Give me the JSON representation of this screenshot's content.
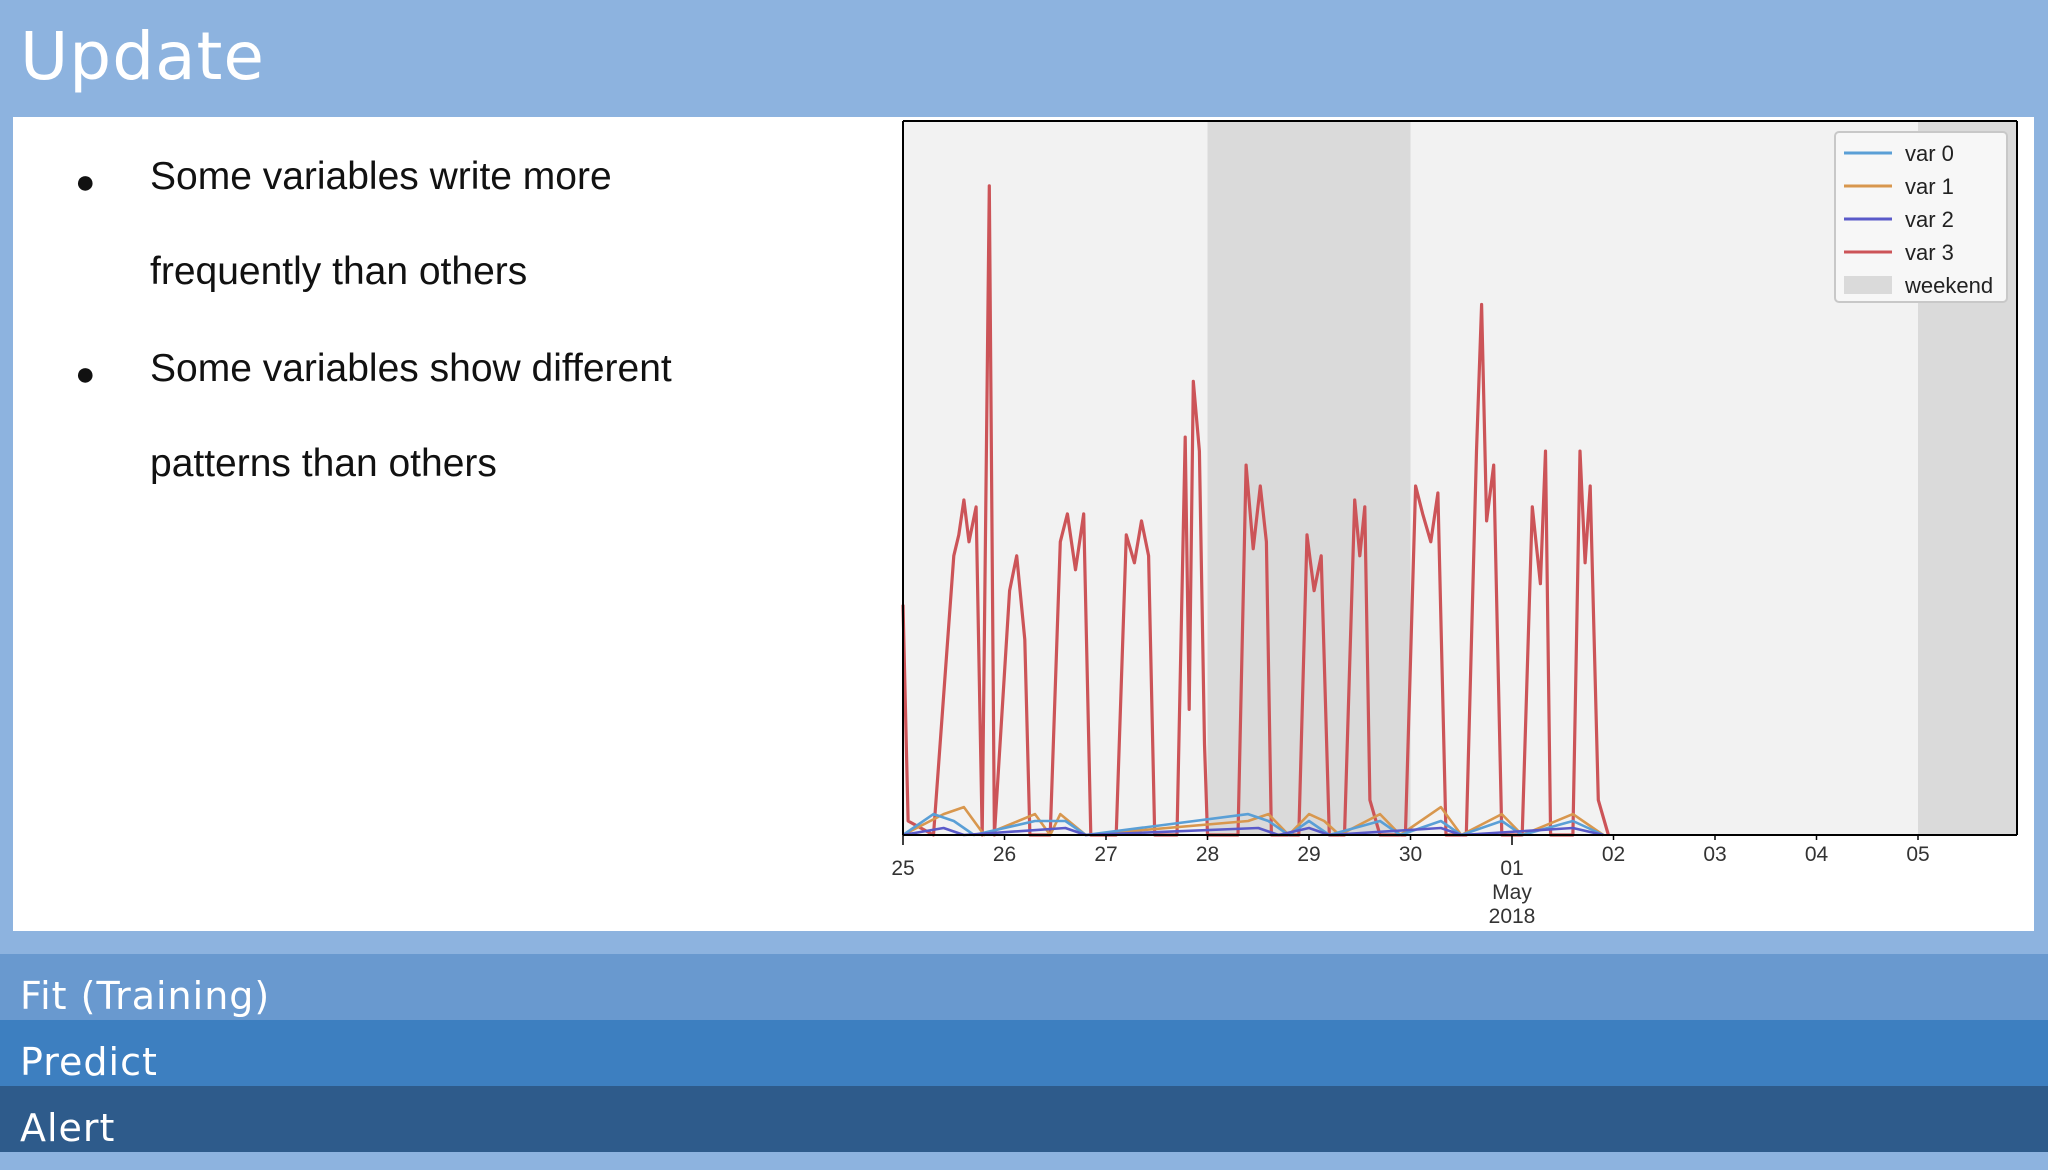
{
  "title": "Update",
  "bullets": [
    {
      "lines": [
        "Some variables write more",
        "frequently than others"
      ]
    },
    {
      "lines": [
        "Some variables show different",
        "patterns than others"
      ]
    }
  ],
  "bullet_glyph": "●",
  "chart_data": {
    "type": "line",
    "x_ticks": [
      "25",
      "26",
      "27",
      "28",
      "29",
      "30",
      "01\nMay\n2018",
      "02",
      "03",
      "04",
      "05"
    ],
    "x_axis_month": "May",
    "x_axis_year": "2018",
    "weekend_spans": [
      [
        "2018-04-28",
        "2018-04-30"
      ],
      [
        "2018-05-05",
        "2018-05-06"
      ]
    ],
    "legend_position": "top-right",
    "legend": [
      "var 0",
      "var 1",
      "var 2",
      "var 3",
      "weekend"
    ],
    "colors": {
      "var 0": "#5a9fd6",
      "var 1": "#d8974e",
      "var 2": "#5a5ac9",
      "var 3": "#cc5458",
      "weekend": "#dadada",
      "plot_bg": "#f2f2f2"
    },
    "series": [
      {
        "name": "var 3",
        "points": [
          [
            0.0,
            0.33
          ],
          [
            0.05,
            0.02
          ],
          [
            0.3,
            0.0
          ],
          [
            0.5,
            0.4
          ],
          [
            0.55,
            0.43
          ],
          [
            0.6,
            0.48
          ],
          [
            0.65,
            0.42
          ],
          [
            0.72,
            0.47
          ],
          [
            0.78,
            0.0
          ],
          [
            0.85,
            0.93
          ],
          [
            0.9,
            0.0
          ],
          [
            1.05,
            0.35
          ],
          [
            1.12,
            0.4
          ],
          [
            1.2,
            0.28
          ],
          [
            1.25,
            0.0
          ],
          [
            1.45,
            0.0
          ],
          [
            1.55,
            0.42
          ],
          [
            1.62,
            0.46
          ],
          [
            1.7,
            0.38
          ],
          [
            1.78,
            0.46
          ],
          [
            1.85,
            0.0
          ],
          [
            2.1,
            0.0
          ],
          [
            2.2,
            0.43
          ],
          [
            2.28,
            0.39
          ],
          [
            2.35,
            0.45
          ],
          [
            2.42,
            0.4
          ],
          [
            2.48,
            0.0
          ],
          [
            2.7,
            0.0
          ],
          [
            2.78,
            0.57
          ],
          [
            2.82,
            0.18
          ],
          [
            2.86,
            0.65
          ],
          [
            2.92,
            0.55
          ],
          [
            2.97,
            0.13
          ],
          [
            3.0,
            0.0
          ],
          [
            3.3,
            0.0
          ],
          [
            3.38,
            0.53
          ],
          [
            3.45,
            0.41
          ],
          [
            3.52,
            0.5
          ],
          [
            3.58,
            0.42
          ],
          [
            3.63,
            0.0
          ],
          [
            3.9,
            0.0
          ],
          [
            3.98,
            0.43
          ],
          [
            4.05,
            0.35
          ],
          [
            4.12,
            0.4
          ],
          [
            4.2,
            0.0
          ],
          [
            4.35,
            0.0
          ],
          [
            4.45,
            0.48
          ],
          [
            4.5,
            0.4
          ],
          [
            4.55,
            0.47
          ],
          [
            4.6,
            0.05
          ],
          [
            4.7,
            0.0
          ],
          [
            4.95,
            0.0
          ],
          [
            5.05,
            0.5
          ],
          [
            5.12,
            0.46
          ],
          [
            5.2,
            0.42
          ],
          [
            5.27,
            0.49
          ],
          [
            5.35,
            0.0
          ],
          [
            5.55,
            0.0
          ],
          [
            5.65,
            0.55
          ],
          [
            5.7,
            0.76
          ],
          [
            5.75,
            0.45
          ],
          [
            5.82,
            0.53
          ],
          [
            5.9,
            0.0
          ],
          [
            6.1,
            0.0
          ],
          [
            6.2,
            0.47
          ],
          [
            6.28,
            0.36
          ],
          [
            6.33,
            0.55
          ],
          [
            6.38,
            0.0
          ],
          [
            6.6,
            0.0
          ],
          [
            6.67,
            0.55
          ],
          [
            6.72,
            0.39
          ],
          [
            6.77,
            0.5
          ],
          [
            6.85,
            0.05
          ],
          [
            6.95,
            0.0
          ]
        ]
      },
      {
        "name": "var 1",
        "points": [
          [
            0.0,
            0.0
          ],
          [
            0.4,
            0.03
          ],
          [
            0.6,
            0.04
          ],
          [
            0.8,
            0.0
          ],
          [
            1.3,
            0.03
          ],
          [
            1.45,
            0.0
          ],
          [
            1.55,
            0.03
          ],
          [
            1.8,
            0.0
          ],
          [
            3.4,
            0.02
          ],
          [
            3.6,
            0.03
          ],
          [
            3.8,
            0.0
          ],
          [
            4.0,
            0.03
          ],
          [
            4.15,
            0.02
          ],
          [
            4.3,
            0.0
          ],
          [
            4.7,
            0.03
          ],
          [
            4.9,
            0.0
          ],
          [
            5.3,
            0.04
          ],
          [
            5.5,
            0.0
          ],
          [
            5.9,
            0.03
          ],
          [
            6.1,
            0.0
          ],
          [
            6.6,
            0.03
          ],
          [
            6.9,
            0.0
          ]
        ]
      },
      {
        "name": "var 0",
        "points": [
          [
            0.0,
            0.0
          ],
          [
            0.3,
            0.03
          ],
          [
            0.5,
            0.02
          ],
          [
            0.7,
            0.0
          ],
          [
            1.3,
            0.02
          ],
          [
            1.6,
            0.02
          ],
          [
            1.8,
            0.0
          ],
          [
            3.4,
            0.03
          ],
          [
            3.6,
            0.02
          ],
          [
            3.8,
            0.0
          ],
          [
            4.0,
            0.02
          ],
          [
            4.2,
            0.0
          ],
          [
            4.7,
            0.02
          ],
          [
            4.9,
            0.0
          ],
          [
            5.3,
            0.02
          ],
          [
            5.5,
            0.0
          ],
          [
            5.9,
            0.02
          ],
          [
            6.1,
            0.0
          ],
          [
            6.6,
            0.02
          ],
          [
            6.9,
            0.0
          ]
        ]
      },
      {
        "name": "var 2",
        "points": [
          [
            0.0,
            0.0
          ],
          [
            0.4,
            0.01
          ],
          [
            0.6,
            0.0
          ],
          [
            1.6,
            0.01
          ],
          [
            1.8,
            0.0
          ],
          [
            3.5,
            0.01
          ],
          [
            3.7,
            0.0
          ],
          [
            4.0,
            0.01
          ],
          [
            4.2,
            0.0
          ],
          [
            5.3,
            0.01
          ],
          [
            5.5,
            0.0
          ],
          [
            6.6,
            0.01
          ],
          [
            6.9,
            0.0
          ]
        ]
      }
    ]
  },
  "bottom_bars": [
    "Fit (Training)",
    "Predict",
    "Alert"
  ]
}
